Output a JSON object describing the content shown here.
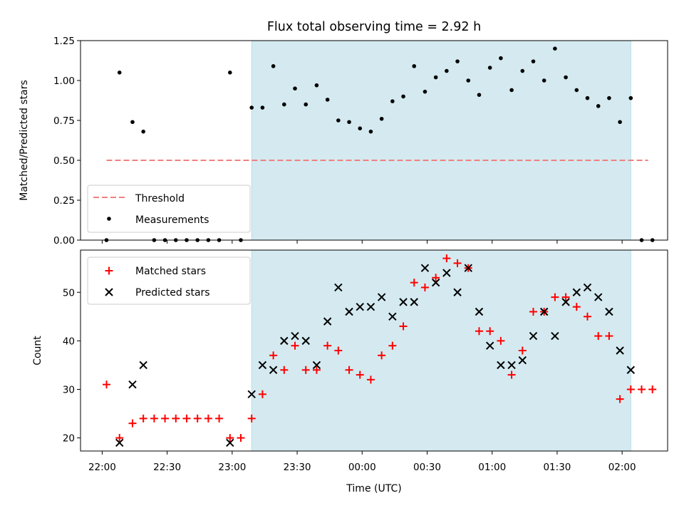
{
  "chart_data": [
    {
      "panel": "top",
      "type": "scatter",
      "title": "Flux total observing time = 2.92 h",
      "ylabel": "Matched/Predicted stars",
      "xlabel": "",
      "ylim": [
        0,
        1.25
      ],
      "yticks": [
        "0.00",
        "0.25",
        "0.50",
        "0.75",
        "1.00",
        "1.25"
      ],
      "legend_placement": "lower-left",
      "threshold": {
        "name": "Threshold",
        "value": 0.5,
        "color": "#f08080",
        "style": "dashed",
        "x_start": "22:02",
        "x_end": "02:12"
      },
      "shaded_region": {
        "x_start": "23:09",
        "x_end": "02:04",
        "color": "#d4eaf0"
      },
      "series": [
        {
          "name": "Measurements",
          "marker": "dot",
          "color": "#000000",
          "x": [
            "22:02",
            "22:08",
            "22:14",
            "22:19",
            "22:24",
            "22:29",
            "22:34",
            "22:39",
            "22:44",
            "22:49",
            "22:54",
            "22:59",
            "23:04",
            "23:09",
            "23:14",
            "23:19",
            "23:24",
            "23:29",
            "23:34",
            "23:39",
            "23:44",
            "23:49",
            "23:54",
            "23:59",
            "00:04",
            "00:09",
            "00:14",
            "00:19",
            "00:24",
            "00:29",
            "00:34",
            "00:39",
            "00:44",
            "00:49",
            "00:54",
            "00:59",
            "01:04",
            "01:09",
            "01:14",
            "01:19",
            "01:24",
            "01:29",
            "01:34",
            "01:39",
            "01:44",
            "01:49",
            "01:54",
            "01:59",
            "02:04",
            "02:09",
            "02:14"
          ],
          "y": [
            0.0,
            1.05,
            0.74,
            0.68,
            0.0,
            0.0,
            0.0,
            0.0,
            0.0,
            0.0,
            0.0,
            1.05,
            0.0,
            0.83,
            0.83,
            1.09,
            0.85,
            0.95,
            0.85,
            0.97,
            0.88,
            0.75,
            0.74,
            0.7,
            0.68,
            0.76,
            0.87,
            0.9,
            1.09,
            0.93,
            1.02,
            1.06,
            1.12,
            1.0,
            0.91,
            1.08,
            1.14,
            0.94,
            1.06,
            1.12,
            1.0,
            1.2,
            1.02,
            0.94,
            0.89,
            0.84,
            0.89,
            0.74,
            0.89,
            0.0,
            0.0
          ]
        }
      ]
    },
    {
      "panel": "bottom",
      "type": "scatter",
      "title": "",
      "ylabel": "Count",
      "xlabel": "Time (UTC)",
      "ylim": [
        17.3,
        58.7
      ],
      "yticks": [
        "20",
        "30",
        "40",
        "50"
      ],
      "xticks": [
        "22:00",
        "22:30",
        "23:00",
        "23:30",
        "00:00",
        "00:30",
        "01:00",
        "01:30",
        "02:00"
      ],
      "xlim": [
        "21:50",
        "02:21"
      ],
      "legend_placement": "upper-left",
      "shaded_region": {
        "x_start": "23:09",
        "x_end": "02:04",
        "color": "#d4eaf0"
      },
      "series": [
        {
          "name": "Matched stars",
          "marker": "plus",
          "color": "#ff0000",
          "x": [
            "22:02",
            "22:08",
            "22:14",
            "22:19",
            "22:24",
            "22:29",
            "22:34",
            "22:39",
            "22:44",
            "22:49",
            "22:54",
            "22:59",
            "23:04",
            "23:09",
            "23:14",
            "23:19",
            "23:24",
            "23:29",
            "23:34",
            "23:39",
            "23:44",
            "23:49",
            "23:54",
            "23:59",
            "00:04",
            "00:09",
            "00:14",
            "00:19",
            "00:24",
            "00:29",
            "00:34",
            "00:39",
            "00:44",
            "00:49",
            "00:54",
            "00:59",
            "01:04",
            "01:09",
            "01:14",
            "01:19",
            "01:24",
            "01:29",
            "01:34",
            "01:39",
            "01:44",
            "01:49",
            "01:54",
            "01:59",
            "02:04",
            "02:09",
            "02:14"
          ],
          "y": [
            31,
            20,
            23,
            24,
            24,
            24,
            24,
            24,
            24,
            24,
            24,
            20,
            20,
            24,
            29,
            37,
            34,
            39,
            34,
            34,
            39,
            38,
            34,
            33,
            32,
            37,
            39,
            43,
            52,
            51,
            53,
            57,
            56,
            55,
            42,
            42,
            40,
            33,
            38,
            46,
            46,
            49,
            49,
            47,
            45,
            41,
            41,
            28,
            30,
            30,
            30
          ]
        },
        {
          "name": "Predicted stars",
          "marker": "x",
          "color": "#000000",
          "x": [
            "22:08",
            "22:14",
            "22:19",
            "22:59",
            "23:09",
            "23:14",
            "23:19",
            "23:24",
            "23:29",
            "23:34",
            "23:39",
            "23:44",
            "23:49",
            "23:54",
            "23:59",
            "00:04",
            "00:09",
            "00:14",
            "00:19",
            "00:24",
            "00:29",
            "00:34",
            "00:39",
            "00:44",
            "00:49",
            "00:54",
            "00:59",
            "01:04",
            "01:09",
            "01:14",
            "01:19",
            "01:24",
            "01:29",
            "01:34",
            "01:39",
            "01:44",
            "01:49",
            "01:54",
            "01:59",
            "02:04"
          ],
          "y": [
            19,
            31,
            35,
            19,
            29,
            35,
            34,
            40,
            41,
            40,
            35,
            44,
            51,
            46,
            47,
            47,
            49,
            45,
            48,
            48,
            55,
            52,
            54,
            50,
            55,
            46,
            39,
            35,
            35,
            36,
            41,
            46,
            41,
            48,
            50,
            51,
            49,
            46,
            38,
            34
          ]
        }
      ]
    }
  ]
}
